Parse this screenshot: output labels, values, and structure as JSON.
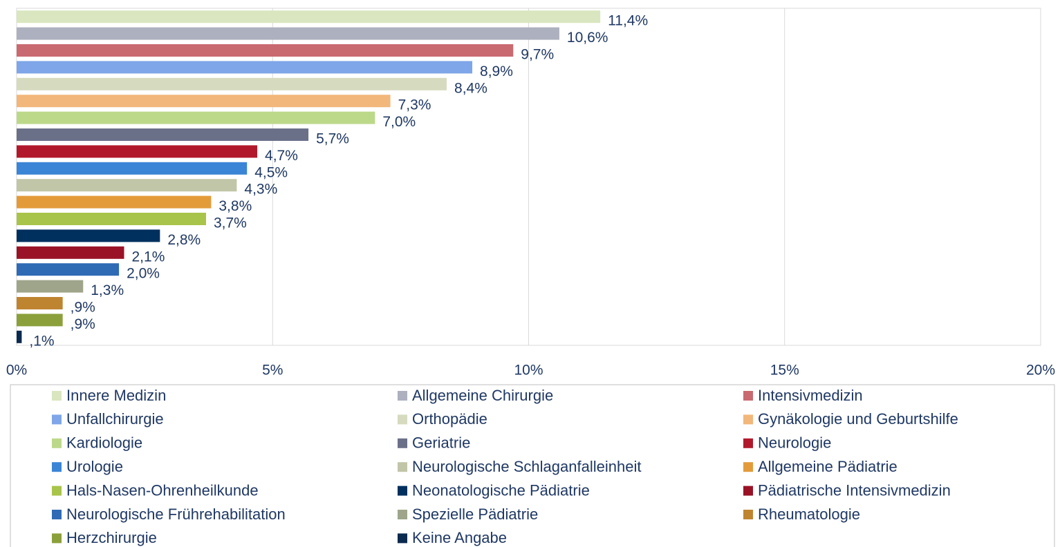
{
  "chart_data": {
    "type": "bar",
    "orientation": "horizontal",
    "categories": [
      "Innere Medizin",
      "Allgemeine Chirurgie",
      "Intensivmedizin",
      "Unfallchirurgie",
      "Orthopädie",
      "Gynäkologie und Geburtshilfe",
      "Kardiologie",
      "Geriatrie",
      "Neurologie",
      "Urologie",
      "Neurologische Schlaganfalleinheit",
      "Allgemeine Pädiatrie",
      "Hals-Nasen-Ohrenheilkunde",
      "Neonatologische Pädiatrie",
      "Pädiatrische Intensivmedizin",
      "Neurologische Frührehabilitation",
      "Spezielle Pädiatrie",
      "Rheumatologie",
      "Herzchirurgie",
      "Keine Angabe"
    ],
    "values": [
      11.4,
      10.6,
      9.7,
      8.9,
      8.4,
      7.3,
      7.0,
      5.7,
      4.7,
      4.5,
      4.3,
      3.8,
      3.7,
      2.8,
      2.1,
      2.0,
      1.3,
      0.9,
      0.9,
      0.1
    ],
    "value_labels": [
      "11,4%",
      "10,6%",
      "9,7%",
      "8,9%",
      "8,4%",
      "7,3%",
      "7,0%",
      "5,7%",
      "4,7%",
      "4,5%",
      "4,3%",
      "3,8%",
      "3,7%",
      "2,8%",
      "2,1%",
      "2,0%",
      "1,3%",
      ",9%",
      ",9%",
      ",1%"
    ],
    "colors": [
      "#d9e6bf",
      "#adb0bf",
      "#c96a70",
      "#7ea6e8",
      "#d6dbbf",
      "#f2b77a",
      "#bcd98a",
      "#6b7089",
      "#b2182b",
      "#3a85d6",
      "#c2c6a8",
      "#e39b3a",
      "#a9c44a",
      "#00305e",
      "#9a1226",
      "#2f6bb5",
      "#9ea58a",
      "#bf8430",
      "#8ba03a",
      "#0b2a4f"
    ],
    "xlim": [
      0,
      20
    ],
    "xticks": [
      {
        "value": 0,
        "label": "0%"
      },
      {
        "value": 5,
        "label": "5%"
      },
      {
        "value": 10,
        "label": "10%"
      },
      {
        "value": 15,
        "label": "15%"
      },
      {
        "value": 20,
        "label": "20%"
      }
    ],
    "grid": true,
    "legend": "bottom"
  }
}
